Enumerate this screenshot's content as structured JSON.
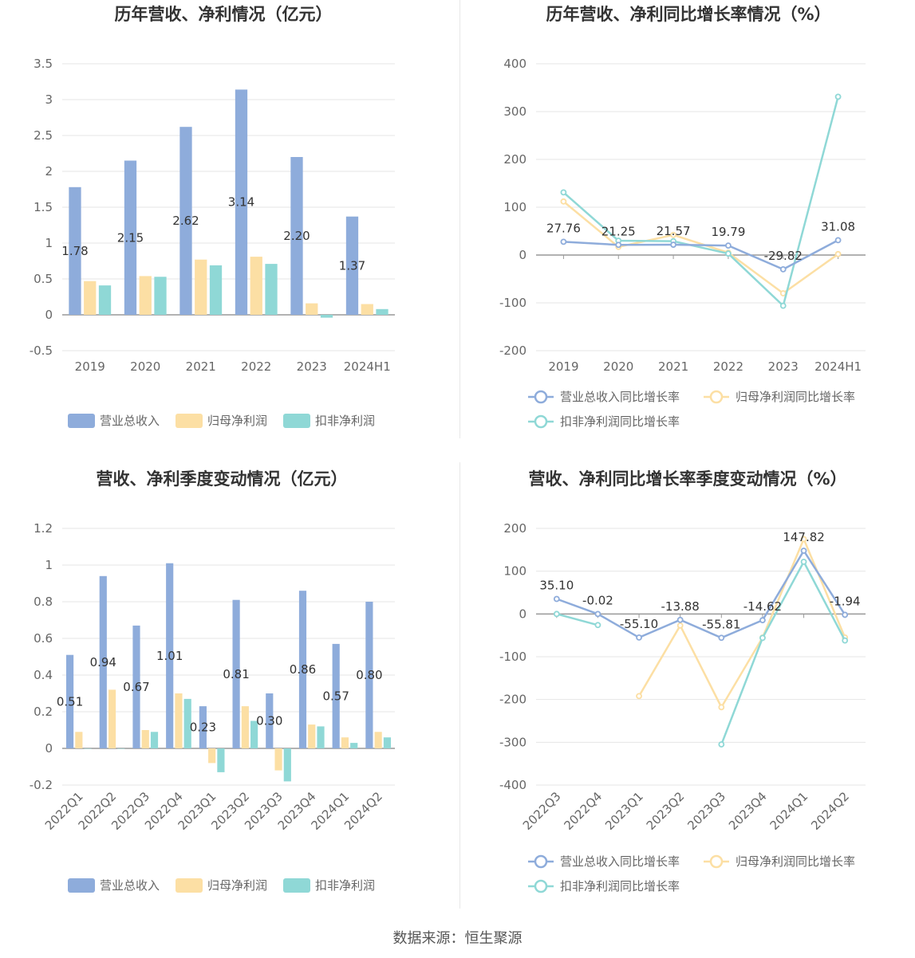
{
  "colors": {
    "revenue": "#8eacdb",
    "net_profit": "#fcdfa4",
    "deducted_profit": "#8fd8d6"
  },
  "source": "数据来源：恒生聚源",
  "chart_data": [
    {
      "id": "annual-amount",
      "type": "bar",
      "title": "历年营收、净利情况（亿元）",
      "categories": [
        "2019",
        "2020",
        "2021",
        "2022",
        "2023",
        "2024H1"
      ],
      "ylim": [
        -0.5,
        3.5
      ],
      "yticks": [
        "-0.5",
        "0",
        "0.5",
        "1",
        "1.5",
        "2",
        "2.5",
        "3",
        "3.5"
      ],
      "series": [
        {
          "name": "营业总收入",
          "color": "#8eacdb",
          "values": [
            1.78,
            2.15,
            2.62,
            3.14,
            2.2,
            1.37
          ],
          "labels": [
            "1.78",
            "2.15",
            "2.62",
            "3.14",
            "2.20",
            "1.37"
          ]
        },
        {
          "name": "归母净利润",
          "color": "#fcdfa4",
          "values": [
            0.47,
            0.54,
            0.77,
            0.81,
            0.16,
            0.15
          ]
        },
        {
          "name": "扣非净利润",
          "color": "#8fd8d6",
          "values": [
            0.41,
            0.53,
            0.69,
            0.71,
            -0.04,
            0.08
          ]
        }
      ],
      "legend": "bottom"
    },
    {
      "id": "annual-growth",
      "type": "line",
      "title": "历年营收、净利同比增长率情况（%）",
      "categories": [
        "2019",
        "2020",
        "2021",
        "2022",
        "2023",
        "2024H1"
      ],
      "ylim": [
        -200,
        400
      ],
      "yticks": [
        "-200",
        "-100",
        "0",
        "100",
        "200",
        "300",
        "400"
      ],
      "series": [
        {
          "name": "营业总收入同比增长率",
          "color": "#8eacdb",
          "values": [
            27.76,
            21.25,
            21.57,
            19.79,
            -29.82,
            31.08
          ],
          "labels": [
            "27.76",
            "21.25",
            "21.57",
            "19.79",
            "-29.82",
            "31.08"
          ]
        },
        {
          "name": "归母净利润同比增长率",
          "color": "#fcdfa4",
          "values": [
            112,
            17,
            42,
            5,
            -80,
            2
          ]
        },
        {
          "name": "扣非净利润同比增长率",
          "color": "#8fd8d6",
          "values": [
            131,
            30,
            29,
            3,
            -106,
            331
          ]
        }
      ],
      "legend": "bottom"
    },
    {
      "id": "quarterly-amount",
      "type": "bar",
      "title": "营收、净利季度变动情况（亿元）",
      "categories": [
        "2022Q1",
        "2022Q2",
        "2022Q3",
        "2022Q4",
        "2023Q1",
        "2023Q2",
        "2023Q3",
        "2023Q4",
        "2024Q1",
        "2024Q2"
      ],
      "ylim": [
        -0.2,
        1.2
      ],
      "yticks": [
        "-0.2",
        "0",
        "0.2",
        "0.4",
        "0.6",
        "0.8",
        "1",
        "1.2"
      ],
      "series": [
        {
          "name": "营业总收入",
          "color": "#8eacdb",
          "values": [
            0.51,
            0.94,
            0.67,
            1.01,
            0.23,
            0.81,
            0.3,
            0.86,
            0.57,
            0.8
          ],
          "labels": [
            "0.51",
            "0.94",
            "0.67",
            "1.01",
            "0.23",
            "0.81",
            "0.30",
            "0.86",
            "0.57",
            "0.80"
          ]
        },
        {
          "name": "归母净利润",
          "color": "#fcdfa4",
          "values": [
            0.09,
            0.32,
            0.1,
            0.3,
            -0.08,
            0.23,
            -0.12,
            0.13,
            0.06,
            0.09
          ]
        },
        {
          "name": "扣非净利润",
          "color": "#8fd8d6",
          "values": [
            0.0,
            0.0,
            0.09,
            0.27,
            -0.13,
            0.15,
            -0.18,
            0.12,
            0.03,
            0.06
          ]
        }
      ],
      "legend": "bottom"
    },
    {
      "id": "quarterly-growth",
      "type": "line",
      "title": "营收、净利同比增长率季度变动情况（%）",
      "categories": [
        "2022Q3",
        "2022Q4",
        "2023Q1",
        "2023Q2",
        "2023Q3",
        "2023Q4",
        "2024Q1",
        "2024Q2"
      ],
      "ylim": [
        -400,
        200
      ],
      "yticks": [
        "-400",
        "-300",
        "-200",
        "-100",
        "0",
        "100",
        "200"
      ],
      "series": [
        {
          "name": "营业总收入同比增长率",
          "color": "#8eacdb",
          "values": [
            35.1,
            -0.02,
            -55.1,
            -13.88,
            -55.81,
            -14.62,
            147.82,
            -1.94
          ],
          "labels": [
            "35.10",
            "-0.02",
            "-55.10",
            "-13.88",
            "-55.81",
            "-14.62",
            "147.82",
            "-1.94"
          ]
        },
        {
          "name": "归母净利润同比增长率",
          "color": "#fcdfa4",
          "values": [
            null,
            null,
            -192,
            -27,
            -218,
            -55,
            175,
            -55
          ]
        },
        {
          "name": "扣非净利润同比增长率",
          "color": "#8fd8d6",
          "values": [
            0,
            -26,
            null,
            null,
            -305,
            -56,
            122,
            -62
          ]
        }
      ],
      "legend": "bottom"
    }
  ]
}
